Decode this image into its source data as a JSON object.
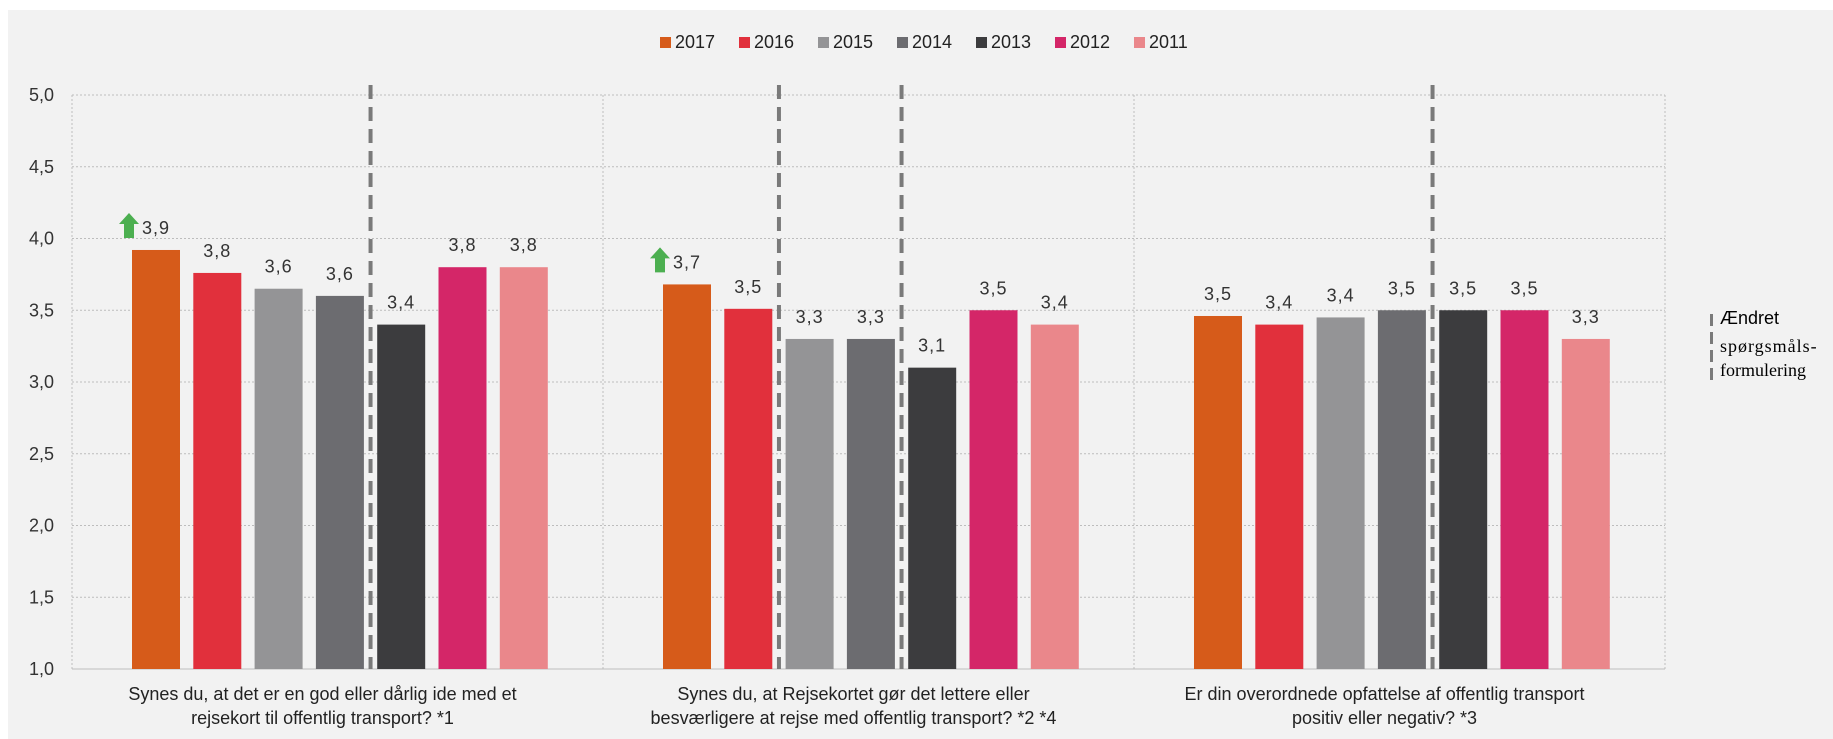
{
  "chart_data": {
    "type": "bar",
    "title": "",
    "xlabel": "",
    "ylabel": "",
    "ylim": [
      1.0,
      5.0
    ],
    "yticks": [
      "1,0",
      "1,5",
      "2,0",
      "2,5",
      "3,0",
      "3,5",
      "4,0",
      "4,5",
      "5,0"
    ],
    "grid": true,
    "legend_position": "top-center",
    "categories": [
      [
        "Synes du, at det er en god eller dårlig ide med et",
        "rejsekort til offentlig transport? *1"
      ],
      [
        "Synes du, at Rejsekortet gør det lettere eller",
        "besværligere at rejse med offentlig transport? *2 *4"
      ],
      [
        "Er din overordnede opfattelse af offentlig transport",
        "positiv eller negativ? *3"
      ]
    ],
    "series": [
      {
        "name": "2017",
        "color": "#d65b1a",
        "values": [
          3.92,
          3.68,
          3.46
        ],
        "labels": [
          "3,9",
          "3,7",
          "3,5"
        ]
      },
      {
        "name": "2016",
        "color": "#e1303c",
        "values": [
          3.76,
          3.51,
          3.4
        ],
        "labels": [
          "3,8",
          "3,5",
          "3,4"
        ]
      },
      {
        "name": "2015",
        "color": "#949496",
        "values": [
          3.65,
          3.3,
          3.45
        ],
        "labels": [
          "3,6",
          "3,3",
          "3,4"
        ]
      },
      {
        "name": "2014",
        "color": "#6c6c70",
        "values": [
          3.6,
          3.3,
          3.5
        ],
        "labels": [
          "3,6",
          "3,3",
          "3,5"
        ]
      },
      {
        "name": "2013",
        "color": "#3c3c3e",
        "values": [
          3.4,
          3.1,
          3.5
        ],
        "labels": [
          "3,4",
          "3,1",
          "3,5"
        ]
      },
      {
        "name": "2012",
        "color": "#d42668",
        "values": [
          3.8,
          3.5,
          3.5
        ],
        "labels": [
          "3,8",
          "3,5",
          "3,5"
        ]
      },
      {
        "name": "2011",
        "color": "#ea878b",
        "values": [
          3.8,
          3.4,
          3.3
        ],
        "labels": [
          "3,8",
          "3,4",
          "3,3"
        ]
      }
    ],
    "up_arrows": [
      {
        "category": 0,
        "series": "2017",
        "icon": "up-arrow-icon",
        "color": "#4caf50"
      },
      {
        "category": 1,
        "series": "2017",
        "icon": "up-arrow-icon",
        "color": "#4caf50"
      }
    ],
    "question_change_markers": [
      {
        "category": 0,
        "between_series": [
          "2014",
          "2013"
        ]
      },
      {
        "category": 1,
        "between_series": [
          "2016",
          "2015"
        ]
      },
      {
        "category": 1,
        "between_series": [
          "2014",
          "2013"
        ]
      },
      {
        "category": 2,
        "between_series": [
          "2014",
          "2013"
        ]
      }
    ]
  },
  "side_note": {
    "line1": "Ændret",
    "line2": "spørgsmåls-",
    "line3": "formulering"
  }
}
